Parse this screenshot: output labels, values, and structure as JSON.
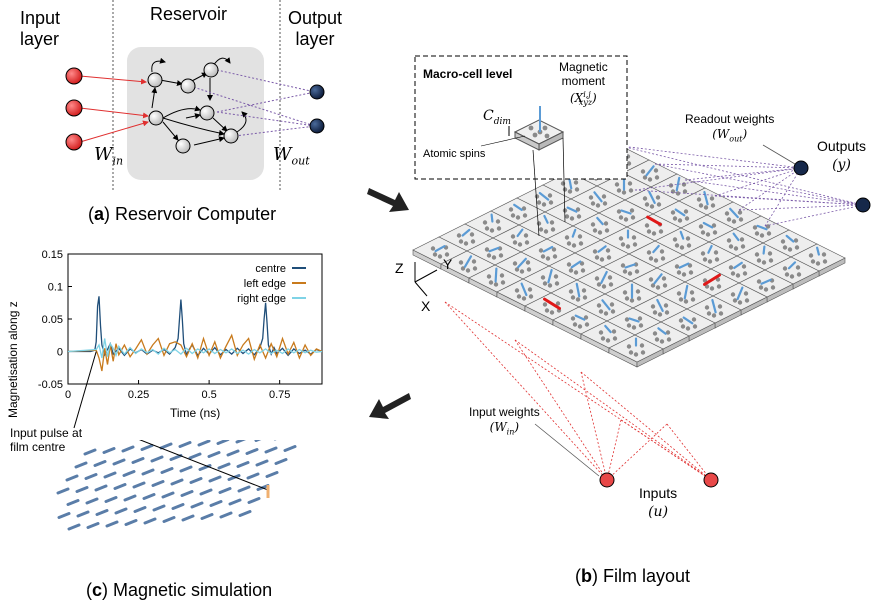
{
  "reservoir_panel": {
    "input_layer_label_1": "Input",
    "input_layer_label_2": "layer",
    "reservoir_label": "Reservoir",
    "output_layer_label_1": "Output",
    "output_layer_label_2": "layer",
    "w_in_label": "W",
    "w_in_sub": "in",
    "w_out_label": "W",
    "w_out_sub": "out",
    "caption_letter": "a",
    "caption_text": " Reservoir Computer"
  },
  "film_panel": {
    "macro_cell_title": "Macro-cell level",
    "magnetic_moment_1": "Magnetic",
    "magnetic_moment_2": "moment",
    "magnetic_moment_sym": "(X",
    "magnetic_moment_sup": "i,j",
    "magnetic_moment_sub": "xyz",
    "magnetic_moment_close": ")",
    "c_dim": "C",
    "c_dim_sub": "dim",
    "atomic_spins": "Atomic spins",
    "readout_weights_1": "Readout weights",
    "readout_weights_2": "(W",
    "readout_weights_sub": "out",
    "readout_weights_close": ")",
    "outputs_1": "Outputs",
    "outputs_2": "(y)",
    "input_weights_1": "Input weights",
    "input_weights_2": "(W",
    "input_weights_sub": "in",
    "input_weights_close": ")",
    "inputs_1": "Inputs",
    "inputs_2": "(u)",
    "axis_z": "Z",
    "axis_y": "Y",
    "axis_x": "X",
    "caption_letter": "b",
    "caption_text": " Film layout"
  },
  "simulation_panel": {
    "input_pulse_1": "Input pulse at",
    "input_pulse_2": "film centre",
    "caption_letter": "c",
    "caption_text": " Magnetic simulation"
  },
  "chart_data": {
    "type": "line",
    "title": "",
    "xlabel": "Time (ns)",
    "ylabel": "Magnetisation along z",
    "xlim": [
      0,
      0.9
    ],
    "ylim": [
      -0.05,
      0.15
    ],
    "xticks": [
      "0",
      "0.25",
      "0.5",
      "0.75"
    ],
    "yticks": [
      "-0.05",
      "0",
      "0.05",
      "0.1",
      "0.15"
    ],
    "legend_position": "top-right",
    "grid": false,
    "series": [
      {
        "name": "centre",
        "color": "#1f4e79",
        "x": [
          0,
          0.08,
          0.095,
          0.1,
          0.105,
          0.11,
          0.115,
          0.12,
          0.13,
          0.14,
          0.15,
          0.16,
          0.18,
          0.2,
          0.22,
          0.24,
          0.26,
          0.28,
          0.3,
          0.32,
          0.34,
          0.36,
          0.38,
          0.39,
          0.395,
          0.4,
          0.405,
          0.41,
          0.42,
          0.43,
          0.44,
          0.46,
          0.48,
          0.5,
          0.52,
          0.54,
          0.56,
          0.58,
          0.6,
          0.62,
          0.64,
          0.66,
          0.68,
          0.69,
          0.695,
          0.7,
          0.705,
          0.71,
          0.72,
          0.73,
          0.74,
          0.76,
          0.78,
          0.8,
          0.82,
          0.84,
          0.86,
          0.88,
          0.9
        ],
        "y": [
          0,
          0,
          0.002,
          0.015,
          0.07,
          0.085,
          0.04,
          0.01,
          -0.005,
          0.003,
          0.012,
          -0.004,
          0.005,
          -0.006,
          0.004,
          -0.002,
          0.003,
          -0.004,
          0.002,
          -0.002,
          0.003,
          -0.004,
          0.006,
          0.02,
          0.05,
          0.08,
          0.05,
          0.012,
          -0.005,
          0.004,
          0.01,
          -0.006,
          0.005,
          -0.004,
          0.006,
          -0.005,
          0.003,
          -0.004,
          0.005,
          -0.003,
          0.004,
          -0.005,
          0.006,
          0.02,
          0.05,
          0.075,
          0.045,
          0.01,
          -0.004,
          0.006,
          -0.003,
          0.005,
          -0.006,
          0.004,
          -0.003,
          0.002,
          -0.004,
          0.003,
          0
        ]
      },
      {
        "name": "left edge",
        "color": "#c87a1c",
        "x": [
          0,
          0.1,
          0.11,
          0.12,
          0.13,
          0.14,
          0.15,
          0.16,
          0.17,
          0.18,
          0.2,
          0.22,
          0.24,
          0.26,
          0.28,
          0.3,
          0.32,
          0.34,
          0.36,
          0.38,
          0.4,
          0.42,
          0.44,
          0.46,
          0.48,
          0.5,
          0.52,
          0.54,
          0.56,
          0.58,
          0.6,
          0.62,
          0.64,
          0.66,
          0.68,
          0.7,
          0.72,
          0.74,
          0.76,
          0.78,
          0.8,
          0.82,
          0.84,
          0.86,
          0.88,
          0.9
        ],
        "y": [
          0,
          0.002,
          -0.01,
          -0.03,
          0.005,
          -0.02,
          0.01,
          -0.015,
          0.012,
          -0.005,
          0.01,
          -0.008,
          0.004,
          0.018,
          -0.004,
          0.01,
          0.02,
          -0.006,
          0.012,
          0.015,
          0.01,
          -0.008,
          0.012,
          -0.01,
          0.02,
          -0.006,
          0.015,
          -0.01,
          0.008,
          0.025,
          -0.006,
          0.01,
          0.02,
          -0.012,
          0.01,
          -0.01,
          0.012,
          -0.008,
          0.02,
          -0.004,
          0.014,
          -0.01,
          0.01,
          -0.006,
          0.004,
          0
        ]
      },
      {
        "name": "right edge",
        "color": "#7fd3e6",
        "x": [
          0,
          0.1,
          0.11,
          0.12,
          0.13,
          0.14,
          0.15,
          0.16,
          0.17,
          0.18,
          0.2,
          0.22,
          0.24,
          0.26,
          0.28,
          0.3,
          0.32,
          0.34,
          0.36,
          0.38,
          0.4,
          0.42,
          0.44,
          0.46,
          0.48,
          0.5,
          0.52,
          0.54,
          0.56,
          0.58,
          0.6,
          0.62,
          0.64,
          0.66,
          0.68,
          0.7,
          0.72,
          0.74,
          0.76,
          0.78,
          0.8,
          0.82,
          0.84,
          0.86,
          0.88,
          0.9
        ],
        "y": [
          0,
          0.003,
          0.01,
          -0.01,
          0.02,
          -0.008,
          0.012,
          0.005,
          -0.006,
          0.008,
          -0.004,
          0.006,
          -0.003,
          0.004,
          -0.002,
          0.003,
          -0.004,
          0.005,
          -0.002,
          0.003,
          -0.004,
          0.005,
          -0.003,
          0.004,
          -0.002,
          0.004,
          -0.003,
          0.003,
          -0.002,
          0.004,
          -0.003,
          0.002,
          -0.004,
          0.003,
          -0.002,
          0.004,
          -0.003,
          0.002,
          -0.003,
          0.004,
          -0.002,
          0.003,
          -0.002,
          0.002,
          -0.001,
          0
        ]
      }
    ]
  }
}
